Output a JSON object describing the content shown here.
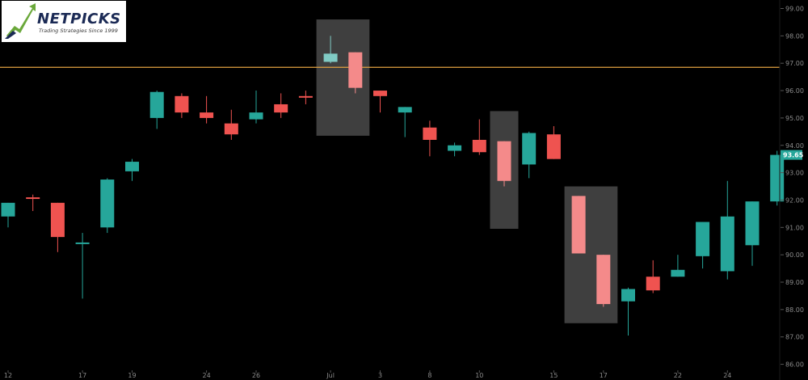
{
  "logo": {
    "brand": "NETPICKS",
    "tagline": "Trading Strategies Since 1999"
  },
  "colors": {
    "up": "#26a69a",
    "down": "#ef5350",
    "highlight_up": "#80cbc4",
    "highlight_down": "#f48a8a",
    "reference_line": "#e0a040",
    "highlight_box": "#4a4a4a",
    "background": "#000000",
    "axis_text": "#8a8a8a",
    "price_badge": "#26a69a"
  },
  "chart_data": {
    "type": "candlestick",
    "x_tick_labels": [
      "12",
      "17",
      "19",
      "24",
      "26",
      "Jul",
      "3",
      "8",
      "10",
      "15",
      "17",
      "22",
      "24"
    ],
    "y_tick_labels": [
      "86.00",
      "87.00",
      "88.00",
      "89.00",
      "90.00",
      "91.00",
      "92.00",
      "93.00",
      "94.00",
      "95.00",
      "96.00",
      "97.00",
      "98.00",
      "99.00"
    ],
    "ylim": [
      86,
      99.3
    ],
    "current_price_label": "93.65",
    "current_price": 93.65,
    "reference_line_price": 96.85,
    "grid": false,
    "candles": [
      {
        "x": "12",
        "open": 91.4,
        "high": 91.9,
        "low": 91.0,
        "close": 91.9
      },
      {
        "x": "13",
        "open": 92.1,
        "high": 92.2,
        "low": 91.6,
        "close": 92.05
      },
      {
        "x": "14",
        "open": 91.9,
        "high": 91.9,
        "low": 90.1,
        "close": 90.65
      },
      {
        "x": "17",
        "open": 90.4,
        "high": 90.8,
        "low": 88.4,
        "close": 90.45
      },
      {
        "x": "18",
        "open": 91.0,
        "high": 92.8,
        "low": 90.8,
        "close": 92.75
      },
      {
        "x": "19",
        "open": 93.05,
        "high": 93.5,
        "low": 92.7,
        "close": 93.4
      },
      {
        "x": "20",
        "open": 95.0,
        "high": 96.0,
        "low": 94.6,
        "close": 95.95
      },
      {
        "x": "21",
        "open": 95.8,
        "high": 95.9,
        "low": 95.0,
        "close": 95.2
      },
      {
        "x": "24",
        "open": 95.2,
        "high": 95.8,
        "low": 94.8,
        "close": 95.0
      },
      {
        "x": "25",
        "open": 94.8,
        "high": 95.3,
        "low": 94.2,
        "close": 94.4
      },
      {
        "x": "26",
        "open": 94.95,
        "high": 96.0,
        "low": 94.8,
        "close": 95.2
      },
      {
        "x": "27",
        "open": 95.5,
        "high": 95.9,
        "low": 95.0,
        "close": 95.2
      },
      {
        "x": "28",
        "open": 95.8,
        "high": 96.0,
        "low": 95.5,
        "close": 95.75
      },
      {
        "x": "Jul",
        "open": 97.05,
        "high": 98.0,
        "low": 97.0,
        "close": 97.35,
        "highlight": true
      },
      {
        "x": "2",
        "open": 97.4,
        "high": 97.4,
        "low": 95.9,
        "close": 96.1,
        "highlight": true
      },
      {
        "x": "3",
        "open": 96.0,
        "high": 96.0,
        "low": 95.2,
        "close": 95.8
      },
      {
        "x": "5",
        "open": 95.2,
        "high": 95.4,
        "low": 94.3,
        "close": 95.4
      },
      {
        "x": "8",
        "open": 94.65,
        "high": 94.9,
        "low": 93.6,
        "close": 94.2
      },
      {
        "x": "9",
        "open": 93.8,
        "high": 94.1,
        "low": 93.6,
        "close": 94.0
      },
      {
        "x": "10",
        "open": 94.2,
        "high": 94.95,
        "low": 93.65,
        "close": 93.75
      },
      {
        "x": "11",
        "open": 94.15,
        "high": 94.15,
        "low": 92.5,
        "close": 92.7,
        "highlight": true
      },
      {
        "x": "12",
        "open": 93.3,
        "high": 94.5,
        "low": 92.8,
        "close": 94.45
      },
      {
        "x": "15",
        "open": 94.4,
        "high": 94.7,
        "low": 93.5,
        "close": 93.5
      },
      {
        "x": "16",
        "open": 92.15,
        "high": 92.15,
        "low": 90.05,
        "close": 90.05,
        "highlight": true
      },
      {
        "x": "17",
        "open": 90.0,
        "high": 90.0,
        "low": 88.1,
        "close": 88.2,
        "highlight": true
      },
      {
        "x": "18",
        "open": 88.3,
        "high": 88.8,
        "low": 87.05,
        "close": 88.75
      },
      {
        "x": "19",
        "open": 89.2,
        "high": 89.8,
        "low": 88.6,
        "close": 88.7
      },
      {
        "x": "22",
        "open": 89.2,
        "high": 90.0,
        "low": 89.2,
        "close": 89.45
      },
      {
        "x": "23",
        "open": 89.95,
        "high": 91.2,
        "low": 89.5,
        "close": 91.2
      },
      {
        "x": "24",
        "open": 89.4,
        "high": 92.7,
        "low": 89.1,
        "close": 91.4
      },
      {
        "x": "25",
        "open": 90.35,
        "high": 91.95,
        "low": 89.6,
        "close": 91.95
      },
      {
        "x": "26",
        "open": 91.95,
        "high": 93.8,
        "low": 91.8,
        "close": 93.65
      }
    ],
    "highlight_boxes": [
      {
        "x_start": "Jul",
        "x_end": "2",
        "price_top": 98.6,
        "price_bottom": 94.35
      },
      {
        "x_start": "11",
        "x_end": "11",
        "price_top": 95.25,
        "price_bottom": 90.95
      },
      {
        "x_start": "16",
        "x_end": "17",
        "price_top": 92.5,
        "price_bottom": 87.5
      }
    ]
  }
}
